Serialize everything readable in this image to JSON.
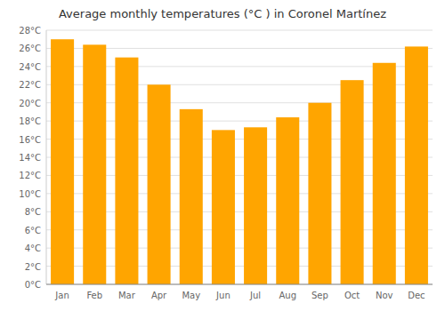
{
  "chart_data": {
    "type": "bar",
    "title": "Average monthly temperatures (°C ) in Coronel Martínez",
    "categories": [
      "Jan",
      "Feb",
      "Mar",
      "Apr",
      "May",
      "Jun",
      "Jul",
      "Aug",
      "Sep",
      "Oct",
      "Nov",
      "Dec"
    ],
    "values": [
      27.0,
      26.4,
      25.0,
      22.0,
      19.3,
      17.0,
      17.3,
      18.4,
      20.0,
      22.5,
      24.4,
      26.2
    ],
    "color": "#FFA500",
    "ylim": [
      0,
      28
    ],
    "yticks": [
      {
        "value": 0,
        "label": "0°C"
      },
      {
        "value": 2,
        "label": "2°C"
      },
      {
        "value": 4,
        "label": "4°C"
      },
      {
        "value": 6,
        "label": "6°C"
      },
      {
        "value": 8,
        "label": "8°C"
      },
      {
        "value": 10,
        "label": "10°C"
      },
      {
        "value": 12,
        "label": "12°C"
      },
      {
        "value": 14,
        "label": "14°C"
      },
      {
        "value": 16,
        "label": "16°C"
      },
      {
        "value": 18,
        "label": "18°C"
      },
      {
        "value": 20,
        "label": "20°C"
      },
      {
        "value": 22,
        "label": "22°C"
      },
      {
        "value": 24,
        "label": "24°C"
      },
      {
        "value": 26,
        "label": "26°C"
      },
      {
        "value": 28,
        "label": "28°C"
      }
    ],
    "grid": true
  }
}
